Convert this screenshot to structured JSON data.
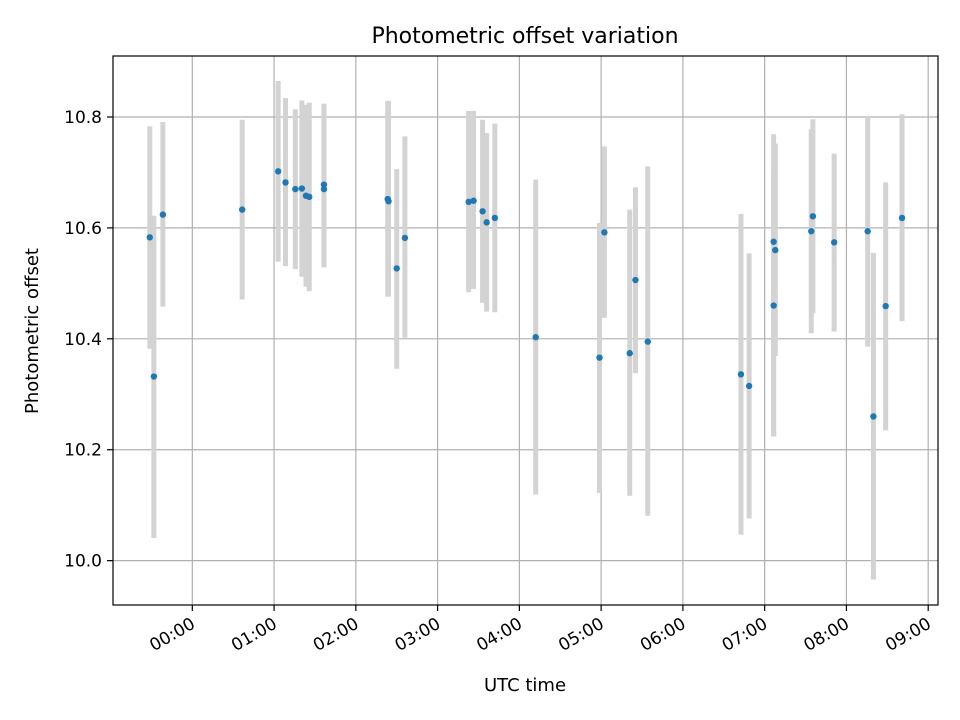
{
  "chart_data": {
    "type": "scatter",
    "title": "Photometric offset variation",
    "xlabel": "UTC time",
    "ylabel": "Photometric offset",
    "grid": true,
    "xlim": [
      -0.97,
      9.12
    ],
    "ylim": [
      9.92,
      10.91
    ],
    "x_ticks": [
      0,
      1,
      2,
      3,
      4,
      5,
      6,
      7,
      8,
      9
    ],
    "x_tick_labels": [
      "00:00",
      "01:00",
      "02:00",
      "03:00",
      "04:00",
      "05:00",
      "06:00",
      "07:00",
      "08:00",
      "09:00"
    ],
    "y_ticks": [
      10.0,
      10.2,
      10.4,
      10.6,
      10.8
    ],
    "y_tick_labels": [
      "10.0",
      "10.2",
      "10.4",
      "10.6",
      "10.8"
    ],
    "colors": {
      "point": "#1f77b4",
      "errorbar": "#d3d3d3",
      "grid": "#b0b0b0"
    },
    "points": [
      {
        "x": -0.52,
        "y": 10.583,
        "lo": 10.382,
        "hi": 10.783
      },
      {
        "x": -0.47,
        "y": 10.332,
        "lo": 10.041,
        "hi": 10.622
      },
      {
        "x": -0.36,
        "y": 10.624,
        "lo": 10.458,
        "hi": 10.791
      },
      {
        "x": 0.61,
        "y": 10.633,
        "lo": 10.471,
        "hi": 10.795
      },
      {
        "x": 1.05,
        "y": 10.702,
        "lo": 10.539,
        "hi": 10.865
      },
      {
        "x": 1.14,
        "y": 10.682,
        "lo": 10.531,
        "hi": 10.834
      },
      {
        "x": 1.26,
        "y": 10.67,
        "lo": 10.526,
        "hi": 10.814
      },
      {
        "x": 1.34,
        "y": 10.671,
        "lo": 10.512,
        "hi": 10.83
      },
      {
        "x": 1.39,
        "y": 10.658,
        "lo": 10.494,
        "hi": 10.822
      },
      {
        "x": 1.43,
        "y": 10.656,
        "lo": 10.486,
        "hi": 10.826
      },
      {
        "x": 1.61,
        "y": 10.678,
        "lo": 10.529,
        "hi": 10.824
      },
      {
        "x": 1.61,
        "y": 10.67,
        "lo": 10.529,
        "hi": 10.824
      },
      {
        "x": 2.39,
        "y": 10.652,
        "lo": 10.476,
        "hi": 10.829
      },
      {
        "x": 2.4,
        "y": 10.648,
        "lo": 10.476,
        "hi": 10.829
      },
      {
        "x": 2.5,
        "y": 10.527,
        "lo": 10.346,
        "hi": 10.706
      },
      {
        "x": 2.6,
        "y": 10.582,
        "lo": 10.402,
        "hi": 10.765
      },
      {
        "x": 3.38,
        "y": 10.647,
        "lo": 10.484,
        "hi": 10.811
      },
      {
        "x": 3.44,
        "y": 10.649,
        "lo": 10.49,
        "hi": 10.811
      },
      {
        "x": 3.55,
        "y": 10.63,
        "lo": 10.465,
        "hi": 10.795
      },
      {
        "x": 3.6,
        "y": 10.61,
        "lo": 10.449,
        "hi": 10.771
      },
      {
        "x": 3.7,
        "y": 10.618,
        "lo": 10.448,
        "hi": 10.788
      },
      {
        "x": 4.2,
        "y": 10.403,
        "lo": 10.119,
        "hi": 10.687
      },
      {
        "x": 4.98,
        "y": 10.366,
        "lo": 10.122,
        "hi": 10.609
      },
      {
        "x": 5.04,
        "y": 10.592,
        "lo": 10.438,
        "hi": 10.747
      },
      {
        "x": 5.35,
        "y": 10.374,
        "lo": 10.117,
        "hi": 10.633
      },
      {
        "x": 5.42,
        "y": 10.506,
        "lo": 10.338,
        "hi": 10.673
      },
      {
        "x": 5.57,
        "y": 10.395,
        "lo": 10.081,
        "hi": 10.711
      },
      {
        "x": 6.71,
        "y": 10.336,
        "lo": 10.047,
        "hi": 10.625
      },
      {
        "x": 6.81,
        "y": 10.315,
        "lo": 10.076,
        "hi": 10.554
      },
      {
        "x": 7.11,
        "y": 10.575,
        "lo": 10.224,
        "hi": 10.769
      },
      {
        "x": 7.11,
        "y": 10.46,
        "lo": 10.224,
        "hi": 10.696
      },
      {
        "x": 7.13,
        "y": 10.56,
        "lo": 10.369,
        "hi": 10.752
      },
      {
        "x": 7.57,
        "y": 10.594,
        "lo": 10.41,
        "hi": 10.778
      },
      {
        "x": 7.59,
        "y": 10.621,
        "lo": 10.446,
        "hi": 10.796
      },
      {
        "x": 7.85,
        "y": 10.574,
        "lo": 10.413,
        "hi": 10.734
      },
      {
        "x": 8.26,
        "y": 10.594,
        "lo": 10.386,
        "hi": 10.802
      },
      {
        "x": 8.33,
        "y": 10.26,
        "lo": 9.966,
        "hi": 10.555
      },
      {
        "x": 8.48,
        "y": 10.459,
        "lo": 10.235,
        "hi": 10.682
      },
      {
        "x": 8.68,
        "y": 10.618,
        "lo": 10.432,
        "hi": 10.805
      }
    ]
  }
}
